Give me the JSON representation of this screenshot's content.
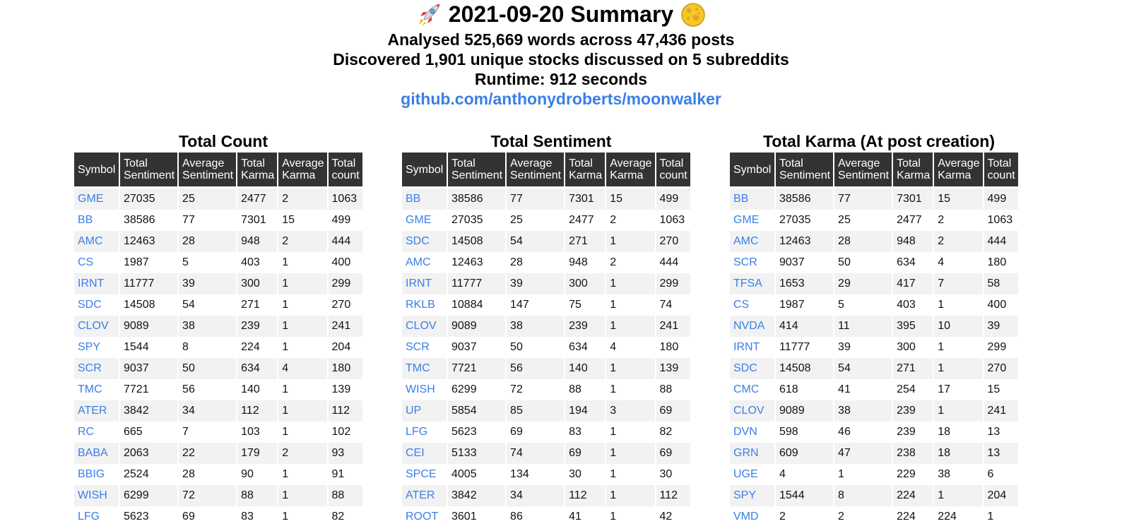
{
  "header": {
    "title": "2021-09-20 Summary",
    "line1": "Analysed 525,669 words across 47,436 posts",
    "line2": "Discovered 1,901 unique stocks discussed on 5 subreddits",
    "line3": "Runtime: 912 seconds",
    "repo_link": "github.com/anthonydroberts/moonwalker"
  },
  "colors": {
    "link": "#3a7fe6",
    "header_bg": "#333333",
    "stripe": "#f2f2f2"
  },
  "columns": {
    "symbol": "Symbol",
    "total_sentiment": [
      "Total",
      "Sentiment"
    ],
    "average_sentiment": [
      "Average",
      "Sentiment"
    ],
    "total_karma": [
      "Total",
      "Karma"
    ],
    "average_karma": [
      "Average",
      "Karma"
    ],
    "total_count": [
      "Total",
      "count"
    ]
  },
  "tables": [
    {
      "title": "Total Count",
      "rows": [
        [
          "GME",
          "27035",
          "25",
          "2477",
          "2",
          "1063"
        ],
        [
          "BB",
          "38586",
          "77",
          "7301",
          "15",
          "499"
        ],
        [
          "AMC",
          "12463",
          "28",
          "948",
          "2",
          "444"
        ],
        [
          "CS",
          "1987",
          "5",
          "403",
          "1",
          "400"
        ],
        [
          "IRNT",
          "11777",
          "39",
          "300",
          "1",
          "299"
        ],
        [
          "SDC",
          "14508",
          "54",
          "271",
          "1",
          "270"
        ],
        [
          "CLOV",
          "9089",
          "38",
          "239",
          "1",
          "241"
        ],
        [
          "SPY",
          "1544",
          "8",
          "224",
          "1",
          "204"
        ],
        [
          "SCR",
          "9037",
          "50",
          "634",
          "4",
          "180"
        ],
        [
          "TMC",
          "7721",
          "56",
          "140",
          "1",
          "139"
        ],
        [
          "ATER",
          "3842",
          "34",
          "112",
          "1",
          "112"
        ],
        [
          "RC",
          "665",
          "7",
          "103",
          "1",
          "102"
        ],
        [
          "BABA",
          "2063",
          "22",
          "179",
          "2",
          "93"
        ],
        [
          "BBIG",
          "2524",
          "28",
          "90",
          "1",
          "91"
        ],
        [
          "WISH",
          "6299",
          "72",
          "88",
          "1",
          "88"
        ],
        [
          "LFG",
          "5623",
          "69",
          "83",
          "1",
          "82"
        ]
      ]
    },
    {
      "title": "Total Sentiment",
      "rows": [
        [
          "BB",
          "38586",
          "77",
          "7301",
          "15",
          "499"
        ],
        [
          "GME",
          "27035",
          "25",
          "2477",
          "2",
          "1063"
        ],
        [
          "SDC",
          "14508",
          "54",
          "271",
          "1",
          "270"
        ],
        [
          "AMC",
          "12463",
          "28",
          "948",
          "2",
          "444"
        ],
        [
          "IRNT",
          "11777",
          "39",
          "300",
          "1",
          "299"
        ],
        [
          "RKLB",
          "10884",
          "147",
          "75",
          "1",
          "74"
        ],
        [
          "CLOV",
          "9089",
          "38",
          "239",
          "1",
          "241"
        ],
        [
          "SCR",
          "9037",
          "50",
          "634",
          "4",
          "180"
        ],
        [
          "TMC",
          "7721",
          "56",
          "140",
          "1",
          "139"
        ],
        [
          "WISH",
          "6299",
          "72",
          "88",
          "1",
          "88"
        ],
        [
          "UP",
          "5854",
          "85",
          "194",
          "3",
          "69"
        ],
        [
          "LFG",
          "5623",
          "69",
          "83",
          "1",
          "82"
        ],
        [
          "CEI",
          "5133",
          "74",
          "69",
          "1",
          "69"
        ],
        [
          "SPCE",
          "4005",
          "134",
          "30",
          "1",
          "30"
        ],
        [
          "ATER",
          "3842",
          "34",
          "112",
          "1",
          "112"
        ],
        [
          "ROOT",
          "3601",
          "86",
          "41",
          "1",
          "42"
        ]
      ]
    },
    {
      "title": "Total Karma (At post creation)",
      "rows": [
        [
          "BB",
          "38586",
          "77",
          "7301",
          "15",
          "499"
        ],
        [
          "GME",
          "27035",
          "25",
          "2477",
          "2",
          "1063"
        ],
        [
          "AMC",
          "12463",
          "28",
          "948",
          "2",
          "444"
        ],
        [
          "SCR",
          "9037",
          "50",
          "634",
          "4",
          "180"
        ],
        [
          "TFSA",
          "1653",
          "29",
          "417",
          "7",
          "58"
        ],
        [
          "CS",
          "1987",
          "5",
          "403",
          "1",
          "400"
        ],
        [
          "NVDA",
          "414",
          "11",
          "395",
          "10",
          "39"
        ],
        [
          "IRNT",
          "11777",
          "39",
          "300",
          "1",
          "299"
        ],
        [
          "SDC",
          "14508",
          "54",
          "271",
          "1",
          "270"
        ],
        [
          "CMC",
          "618",
          "41",
          "254",
          "17",
          "15"
        ],
        [
          "CLOV",
          "9089",
          "38",
          "239",
          "1",
          "241"
        ],
        [
          "DVN",
          "598",
          "46",
          "239",
          "18",
          "13"
        ],
        [
          "GRN",
          "609",
          "47",
          "238",
          "18",
          "13"
        ],
        [
          "UGE",
          "4",
          "1",
          "229",
          "38",
          "6"
        ],
        [
          "SPY",
          "1544",
          "8",
          "224",
          "1",
          "204"
        ],
        [
          "VMD",
          "2",
          "2",
          "224",
          "224",
          "1"
        ]
      ]
    }
  ]
}
